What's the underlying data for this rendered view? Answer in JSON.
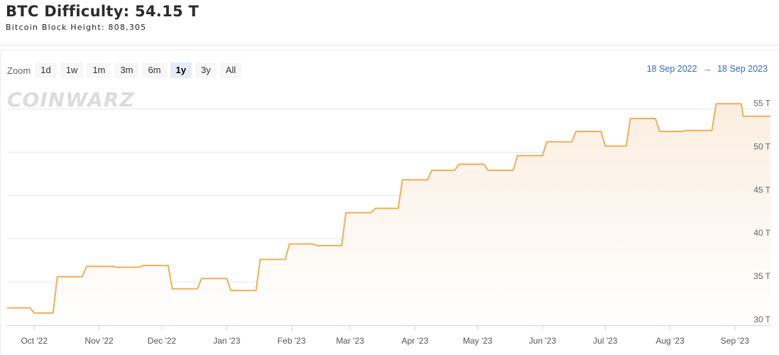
{
  "header": {
    "title": "BTC Difficulty: 54.15 T",
    "subtitle": "Bitcoin Block Height: 808,305"
  },
  "zoom": {
    "label": "Zoom",
    "buttons": [
      "1d",
      "1w",
      "1m",
      "3m",
      "6m",
      "1y",
      "3y",
      "All"
    ],
    "active": "1y"
  },
  "range": {
    "from": "18 Sep 2022",
    "arrow": "→",
    "to": "18 Sep 2023"
  },
  "watermark": "COINWARZ",
  "colors": {
    "line": "#f0ae5a",
    "area_top": "#fbeee0",
    "accent_link": "#3366cc"
  },
  "chart_data": {
    "type": "area",
    "title": "",
    "xlabel": "",
    "ylabel": "",
    "x_tick_labels": [
      "Oct '22",
      "Nov '22",
      "Dec '22",
      "Jan '23",
      "Feb '23",
      "Mar '23",
      "Apr '23",
      "May '23",
      "Jun '23",
      "Jul '23",
      "Aug '23",
      "Sep '23"
    ],
    "y_tick_labels": [
      "30 T",
      "35 T",
      "40 T",
      "45 T",
      "50 T",
      "55 T"
    ],
    "y_ticks": [
      30,
      35,
      40,
      45,
      50,
      55
    ],
    "ylim": [
      30,
      57.5
    ],
    "xlim": [
      "2022-09-18",
      "2023-09-18"
    ],
    "grid": "horizontal",
    "series": [
      {
        "values": [
          [
            "2022-09-18",
            32.0
          ],
          [
            "2022-09-29",
            32.0
          ],
          [
            "2022-10-01",
            31.4
          ],
          [
            "2022-10-10",
            31.4
          ],
          [
            "2022-10-12",
            35.6
          ],
          [
            "2022-10-24",
            35.6
          ],
          [
            "2022-10-26",
            36.8
          ],
          [
            "2022-11-08",
            36.8
          ],
          [
            "2022-11-09",
            36.7
          ],
          [
            "2022-11-20",
            36.7
          ],
          [
            "2022-11-22",
            36.9
          ],
          [
            "2022-12-04",
            36.9
          ],
          [
            "2022-12-06",
            34.2
          ],
          [
            "2022-12-18",
            34.2
          ],
          [
            "2022-12-20",
            35.4
          ],
          [
            "2023-01-01",
            35.4
          ],
          [
            "2023-01-03",
            34.0
          ],
          [
            "2023-01-15",
            34.0
          ],
          [
            "2023-01-17",
            37.6
          ],
          [
            "2023-01-29",
            37.6
          ],
          [
            "2023-01-31",
            39.4
          ],
          [
            "2023-02-11",
            39.4
          ],
          [
            "2023-02-13",
            39.2
          ],
          [
            "2023-02-25",
            39.2
          ],
          [
            "2023-02-27",
            43.0
          ],
          [
            "2023-03-11",
            43.0
          ],
          [
            "2023-03-13",
            43.5
          ],
          [
            "2023-03-24",
            43.5
          ],
          [
            "2023-03-26",
            46.8
          ],
          [
            "2023-04-07",
            46.8
          ],
          [
            "2023-04-09",
            47.9
          ],
          [
            "2023-04-20",
            47.9
          ],
          [
            "2023-04-22",
            48.6
          ],
          [
            "2023-05-04",
            48.6
          ],
          [
            "2023-05-06",
            47.9
          ],
          [
            "2023-05-18",
            47.9
          ],
          [
            "2023-05-20",
            49.6
          ],
          [
            "2023-06-01",
            49.6
          ],
          [
            "2023-06-03",
            51.2
          ],
          [
            "2023-06-15",
            51.2
          ],
          [
            "2023-06-17",
            52.4
          ],
          [
            "2023-06-29",
            52.4
          ],
          [
            "2023-07-01",
            50.7
          ],
          [
            "2023-07-11",
            50.7
          ],
          [
            "2023-07-13",
            53.9
          ],
          [
            "2023-07-25",
            53.9
          ],
          [
            "2023-07-27",
            52.4
          ],
          [
            "2023-08-07",
            52.4
          ],
          [
            "2023-08-08",
            52.5
          ],
          [
            "2023-08-21",
            52.5
          ],
          [
            "2023-08-23",
            55.6
          ],
          [
            "2023-09-04",
            55.6
          ],
          [
            "2023-09-05",
            54.15
          ],
          [
            "2023-09-18",
            54.15
          ]
        ]
      }
    ]
  }
}
